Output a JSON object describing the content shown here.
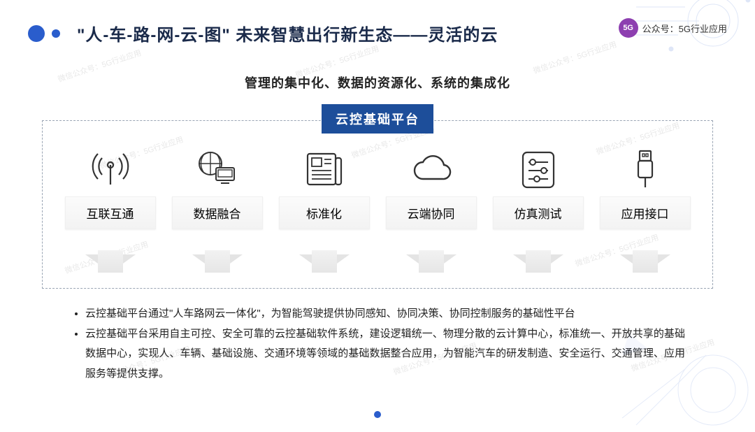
{
  "header": {
    "dot1_color": "#2a5dcc",
    "dot2_color": "#2a5dcc",
    "title": "\"人-车-路-网-云-图\" 未来智慧出行新生态——灵活的云",
    "title_color": "#1a2a4a",
    "brand_badge_text": "5G",
    "brand_badge_bg": "#8d3fb0",
    "brand_text": "公众号：5G行业应用"
  },
  "subtitle": {
    "text": "管理的集中化、数据的资源化、系统的集成化",
    "color": "#222222"
  },
  "platform": {
    "label": "云控基础平台",
    "bg": "#1d4e9a",
    "text_color": "#ffffff"
  },
  "box": {
    "border_color": "#9aa5b4",
    "label_box_bg_from": "#fbfbfb",
    "label_box_bg_to": "#f3f3f3",
    "arrow_color": "#e4e4e4"
  },
  "features": [
    {
      "icon": "antenna",
      "label": "互联互通"
    },
    {
      "icon": "globe-pc",
      "label": "数据融合"
    },
    {
      "icon": "newspaper",
      "label": "标准化"
    },
    {
      "icon": "cloud",
      "label": "云端协同"
    },
    {
      "icon": "sliders",
      "label": "仿真测试"
    },
    {
      "icon": "usb",
      "label": "应用接口"
    }
  ],
  "bullets": [
    "云控基础平台通过\"人车路网云一体化\"，为智能驾驶提供协同感知、协同决策、协同控制服务的基础性平台",
    "云控基础平台采用自主可控、安全可靠的云控基础软件系统，建设逻辑统一、物理分散的云计算中心，标准统一、开放共享的基础数据中心，实现人、车辆、基础设施、交通环境等领域的基础数据整合应用，为智能汽车的研发制造、安全运行、交通管理、应用服务等提供支撑。"
  ],
  "footer_dot_color": "#2a5dcc",
  "icon_stroke": "#333333",
  "watermark_text": "微信公众号：5G行业应用",
  "deco_color": "#2a5dcc"
}
